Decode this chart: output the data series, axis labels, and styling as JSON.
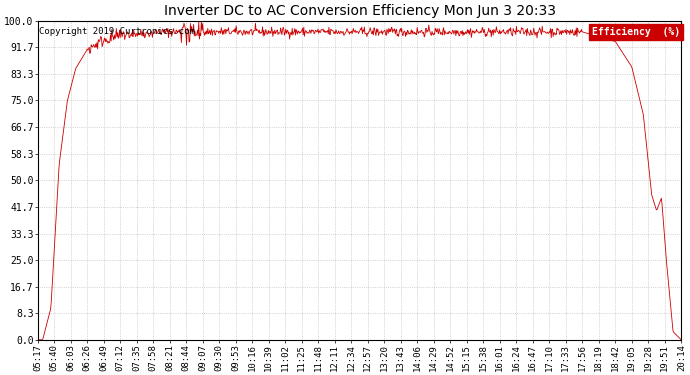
{
  "title": "Inverter DC to AC Conversion Efficiency Mon Jun 3 20:33",
  "copyright_text": "Copyright 2019 Curtronics.com",
  "legend_label": "Efficiency  (%)",
  "legend_bg_color": "#cc0000",
  "legend_text_color": "#ffffff",
  "line_color": "#cc0000",
  "background_color": "#ffffff",
  "grid_color": "#aaaaaa",
  "ylim": [
    0.0,
    100.0
  ],
  "ytick_labels": [
    "0.0",
    "8.3",
    "16.7",
    "25.0",
    "33.3",
    "41.7",
    "50.0",
    "58.3",
    "66.7",
    "75.0",
    "83.3",
    "91.7",
    "100.0"
  ],
  "ytick_values": [
    0.0,
    8.3,
    16.7,
    25.0,
    33.3,
    41.7,
    50.0,
    58.3,
    66.7,
    75.0,
    83.3,
    91.7,
    100.0
  ],
  "xtick_labels": [
    "05:17",
    "05:40",
    "06:03",
    "06:26",
    "06:49",
    "07:12",
    "07:35",
    "07:58",
    "08:21",
    "08:44",
    "09:07",
    "09:30",
    "09:53",
    "10:16",
    "10:39",
    "11:02",
    "11:25",
    "11:48",
    "12:11",
    "12:34",
    "12:57",
    "13:20",
    "13:43",
    "14:06",
    "14:29",
    "14:52",
    "15:15",
    "15:38",
    "16:01",
    "16:24",
    "16:47",
    "17:10",
    "17:33",
    "17:56",
    "18:19",
    "18:42",
    "19:05",
    "19:28",
    "19:51",
    "20:14"
  ],
  "figsize": [
    6.9,
    3.75
  ],
  "dpi": 100
}
